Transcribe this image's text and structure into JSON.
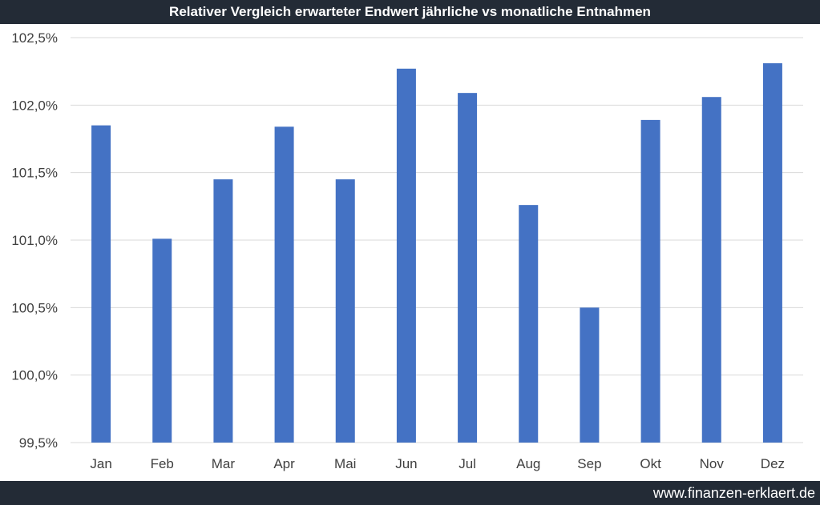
{
  "footer": {
    "url": "www.finanzen-erklaert.de"
  },
  "colors": {
    "bar": "#4472c4",
    "header_bg": "#232b36",
    "grid": "#d9d9d9",
    "axis_text": "#404040"
  },
  "chart_data": {
    "type": "bar",
    "title": "Relativer Vergleich erwarteter Endwert jährliche vs monatliche Entnahmen",
    "xlabel": "",
    "ylabel": "",
    "categories": [
      "Jan",
      "Feb",
      "Mar",
      "Apr",
      "Mai",
      "Jun",
      "Jul",
      "Aug",
      "Sep",
      "Okt",
      "Nov",
      "Dez"
    ],
    "values": [
      101.85,
      101.01,
      101.45,
      101.84,
      101.45,
      102.27,
      102.09,
      101.26,
      100.5,
      101.89,
      102.06,
      102.31
    ],
    "ylim": [
      99.5,
      102.5
    ],
    "yticks": [
      99.5,
      100.0,
      100.5,
      101.0,
      101.5,
      102.0,
      102.5
    ],
    "ytick_labels": [
      "99,5%",
      "100,0%",
      "100,5%",
      "101,0%",
      "101,5%",
      "102,0%",
      "102,5%"
    ],
    "grid": true,
    "legend": "none"
  }
}
